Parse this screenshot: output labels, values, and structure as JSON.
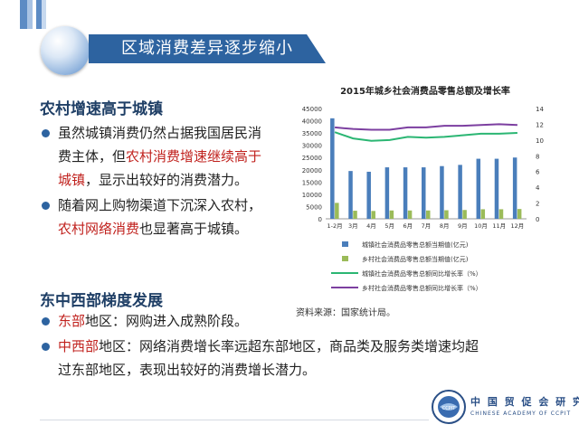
{
  "slide": {
    "title": "区域消费差异逐步缩小",
    "section1": {
      "heading": "农村增速高于城镇",
      "bullets": [
        {
          "lines": [
            [
              {
                "text": "虽然城镇消费仍然占据我国居民消",
                "red": false
              }
            ],
            [
              {
                "text": "费主体，但",
                "red": false
              },
              {
                "text": "农村消费增速继续高于",
                "red": true
              }
            ],
            [
              {
                "text": "城镇",
                "red": true
              },
              {
                "text": "，显示出较好的消费潜力。",
                "red": false
              }
            ]
          ]
        },
        {
          "lines": [
            [
              {
                "text": "随着网上购物渠道下沉深入农村，",
                "red": false
              }
            ],
            [
              {
                "text": "农村网络消费",
                "red": true
              },
              {
                "text": "也显著高于城镇。",
                "red": false
              }
            ]
          ]
        }
      ]
    },
    "section2": {
      "heading": "东中西部梯度发展",
      "bullets": [
        {
          "lines": [
            [
              {
                "text": "东部",
                "red": true
              },
              {
                "text": "地区：网购进入成熟阶段。",
                "red": false
              }
            ]
          ]
        },
        {
          "lines": [
            [
              {
                "text": "中西部",
                "red": true
              },
              {
                "text": "地区：网络消费增长率远超东部地区，商品类及服务类增速均超",
                "red": false
              }
            ],
            [
              {
                "text": "过东部地区，表现出较好的消费增长潜力。",
                "red": false
              }
            ]
          ]
        }
      ]
    },
    "source": "资料来源：国家统计局。",
    "logo": {
      "title": "中 国 贸 促 会 研 究 院",
      "subtitle": "CHINESE ACADEMY OF CCPIT",
      "emblem_text": "CCPIT"
    }
  },
  "chart_data": {
    "type": "bar",
    "title": "2015年城乡社会消费品零售总额及增长率",
    "categories": [
      "1-2月",
      "3月",
      "4月",
      "5月",
      "6月",
      "7月",
      "8月",
      "9月",
      "10月",
      "11月",
      "12月"
    ],
    "y_left": {
      "min": 0,
      "max": 45000,
      "step": 5000
    },
    "y_right": {
      "min": 0,
      "max": 14,
      "step": 2
    },
    "series": [
      {
        "name": "城镇社会消费品零售总额当期值(亿元)",
        "kind": "bar",
        "axis": "left",
        "color": "#4a7ebb",
        "values": [
          41000,
          19500,
          19200,
          21000,
          21000,
          21000,
          21500,
          22000,
          24500,
          24500,
          25000
        ]
      },
      {
        "name": "乡村社会消费品零售总额当期值(亿元)",
        "kind": "bar",
        "axis": "left",
        "color": "#9bbb59",
        "values": [
          6500,
          3300,
          3200,
          3400,
          3400,
          3400,
          3500,
          3600,
          3900,
          3900,
          4000
        ]
      },
      {
        "name": "城镇社会消费品零售总额同比增长率（%）",
        "kind": "line",
        "axis": "right",
        "color": "#2bb673",
        "values": [
          11.0,
          10.2,
          9.9,
          10.0,
          10.4,
          10.3,
          10.4,
          10.6,
          10.8,
          10.8,
          10.9
        ]
      },
      {
        "name": "乡村社会消费品零售总额同比增长率（%）",
        "kind": "line",
        "axis": "right",
        "color": "#7c3fa0",
        "values": [
          11.6,
          11.4,
          11.3,
          11.3,
          11.6,
          11.6,
          11.8,
          11.8,
          11.9,
          12.0,
          11.9
        ]
      }
    ],
    "legend_position": "bottom"
  }
}
